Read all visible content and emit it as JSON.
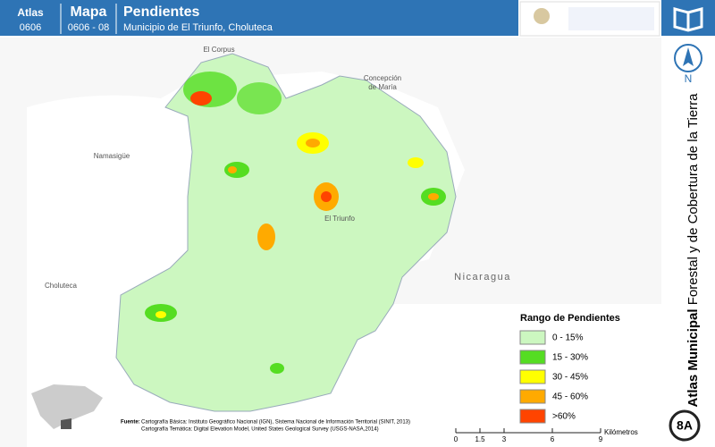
{
  "header": {
    "atlas_label": "Atlas",
    "atlas_code": "0606",
    "map_label": "Mapa",
    "map_code": "0606 - 08",
    "title": "Pendientes",
    "subtitle": "Municipio de El Triunfo, Choluteca"
  },
  "places": [
    "El Corpus",
    "Concepción",
    "de María",
    "Namasigüe",
    "El Triunfo",
    "Choluteca",
    "Nicaragua"
  ],
  "legend": {
    "title": "Rango de Pendientes",
    "items": [
      {
        "label": "0 - 15%",
        "color": "#ccf7c0"
      },
      {
        "label": "15 - 30%",
        "color": "#55dd22"
      },
      {
        "label": "30 - 45%",
        "color": "#ffff00"
      },
      {
        "label": "45 - 60%",
        "color": "#ffaa00"
      },
      {
        "label": ">60%",
        "color": "#ff4400"
      }
    ]
  },
  "scale": {
    "ticks": [
      0,
      1.5,
      3,
      6,
      9
    ],
    "unit": "Kilómetros"
  },
  "source": {
    "label": "Fuente:",
    "lines": [
      "Cartografía Básica: Instituto Geográfico Nacional (IGN), Sistema Nacional de Información Territorial (SINIT, 2013)",
      "Cartografía Temática: Digital Elevation Model, United States Geological Survey (USGS-NASA,2014)"
    ]
  },
  "side": {
    "north": "N",
    "title_bold": "Atlas Municipal",
    "title_rest": " Forestal y de Cobertura de la Tierra",
    "page": "8A"
  }
}
